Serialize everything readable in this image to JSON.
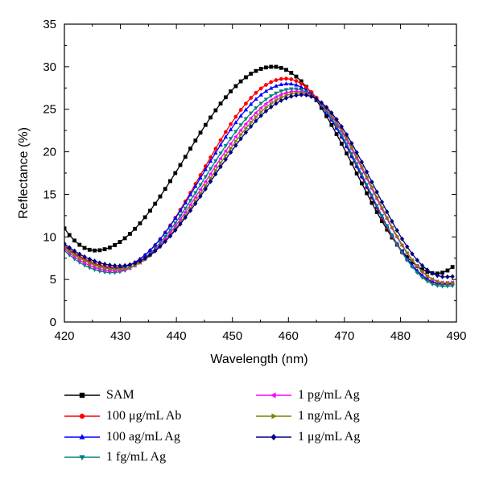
{
  "chart_data": {
    "type": "line",
    "title": "",
    "xlabel": "Wavelength (nm)",
    "ylabel": "Reflectance (%)",
    "xlim": [
      420,
      490
    ],
    "ylim": [
      0,
      35
    ],
    "xticks": [
      420,
      430,
      440,
      450,
      460,
      470,
      480,
      490
    ],
    "yticks": [
      0,
      5,
      10,
      15,
      20,
      25,
      30,
      35
    ],
    "grid": false,
    "legend_position": "bottom",
    "series": [
      {
        "name": "SAM",
        "color": "#000000",
        "marker": "square",
        "baseline": 8.4,
        "peak": 30.0,
        "peak_x": 457.3,
        "min_left_x": 425.5,
        "right_min": 5.7,
        "right_min_x": 486.5,
        "end_y": 6.9
      },
      {
        "name": "100 μg/mL Ab",
        "color": "#ff0000",
        "marker": "circle",
        "baseline": 6.4,
        "peak": 28.6,
        "peak_x": 459.5,
        "min_left_x": 429.5,
        "right_min": 4.4,
        "right_min_x": 487.5,
        "end_y": 4.5
      },
      {
        "name": "100 ag/mL Ag",
        "color": "#0000ff",
        "marker": "triangle-up",
        "baseline": 6.3,
        "peak": 28.0,
        "peak_x": 460.0,
        "min_left_x": 429.0,
        "right_min": 4.5,
        "right_min_x": 487.5,
        "end_y": 4.6
      },
      {
        "name": "1 fg/mL Ag",
        "color": "#008080",
        "marker": "triangle-down",
        "baseline": 5.8,
        "peak": 27.4,
        "peak_x": 461.0,
        "min_left_x": 428.5,
        "right_min": 4.2,
        "right_min_x": 487.5,
        "end_y": 4.3
      },
      {
        "name": "1 pg/mL Ag",
        "color": "#ff00ff",
        "marker": "triangle-left",
        "baseline": 6.0,
        "peak": 27.1,
        "peak_x": 461.5,
        "min_left_x": 429.0,
        "right_min": 4.6,
        "right_min_x": 488.0,
        "end_y": 4.7
      },
      {
        "name": "1 ng/mL Ag",
        "color": "#808000",
        "marker": "triangle-right",
        "baseline": 6.2,
        "peak": 26.9,
        "peak_x": 462.0,
        "min_left_x": 429.5,
        "right_min": 4.6,
        "right_min_x": 488.0,
        "end_y": 4.7
      },
      {
        "name": "1 μg/mL Ag",
        "color": "#000080",
        "marker": "diamond",
        "baseline": 6.6,
        "peak": 26.7,
        "peak_x": 462.5,
        "min_left_x": 430.0,
        "right_min": 5.3,
        "right_min_x": 488.0,
        "end_y": 5.4
      }
    ]
  }
}
